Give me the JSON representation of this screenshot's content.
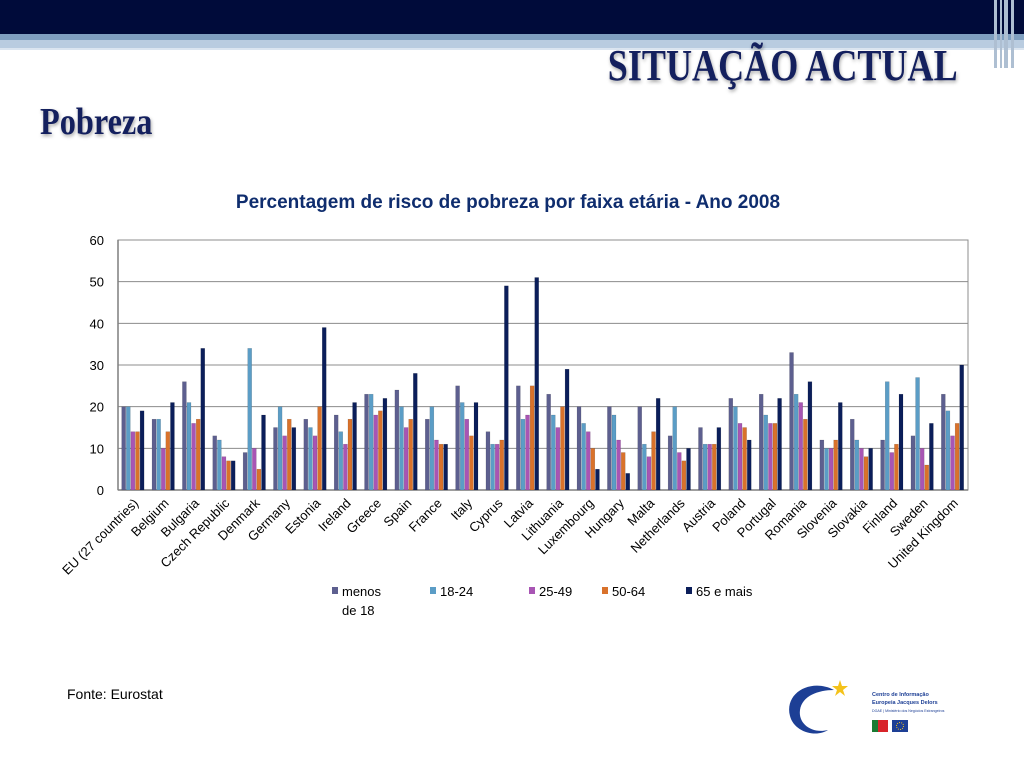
{
  "slide": {
    "heading": "SITUAÇÃO ACTUAL",
    "subheading": "Pobreza",
    "source": "Fonte: Eurostat",
    "logo_lines": [
      "Centro de Informação",
      "Europeia Jacques Delors",
      "DGAE | Ministério dos Negócios Estrangeiros"
    ]
  },
  "chart_data": {
    "type": "bar",
    "title": "Percentagem de risco de pobreza por faixa etária - Ano 2008",
    "xlabel": "",
    "ylabel": "",
    "ylim": [
      0,
      60
    ],
    "yticks": [
      0,
      10,
      20,
      30,
      40,
      50,
      60
    ],
    "grid": true,
    "legend_position": "bottom",
    "categories": [
      "EU (27 countries)",
      "Belgium",
      "Bulgaria",
      "Czech Republic",
      "Denmark",
      "Germany",
      "Estonia",
      "Ireland",
      "Greece",
      "Spain",
      "France",
      "Italy",
      "Cyprus",
      "Latvia",
      "Lithuania",
      "Luxembourg",
      "Hungary",
      "Malta",
      "Netherlands",
      "Austria",
      "Poland",
      "Portugal",
      "Romania",
      "Slovenia",
      "Slovakia",
      "Finland",
      "Sweden",
      "United Kingdom"
    ],
    "series": [
      {
        "name": "menos de 18",
        "color": "#5d5f8f",
        "values": [
          20,
          17,
          26,
          13,
          9,
          15,
          17,
          18,
          23,
          24,
          17,
          25,
          14,
          25,
          23,
          20,
          20,
          20,
          13,
          15,
          22,
          23,
          33,
          12,
          17,
          12,
          13,
          23
        ]
      },
      {
        "name": "18-24",
        "color": "#5b9dc6",
        "values": [
          20,
          17,
          21,
          12,
          34,
          20,
          15,
          14,
          23,
          20,
          20,
          21,
          11,
          17,
          18,
          16,
          18,
          11,
          20,
          11,
          20,
          18,
          23,
          10,
          12,
          26,
          27,
          19
        ]
      },
      {
        "name": "25-49",
        "color": "#a855b4",
        "values": [
          14,
          10,
          16,
          8,
          10,
          13,
          13,
          11,
          18,
          15,
          12,
          17,
          11,
          18,
          15,
          14,
          12,
          8,
          9,
          11,
          16,
          16,
          21,
          10,
          10,
          9,
          10,
          13
        ]
      },
      {
        "name": "50-64",
        "color": "#d9722b",
        "values": [
          14,
          14,
          17,
          7,
          5,
          17,
          20,
          17,
          19,
          17,
          11,
          13,
          12,
          25,
          20,
          10,
          9,
          14,
          7,
          11,
          15,
          16,
          17,
          12,
          8,
          11,
          6,
          16
        ]
      },
      {
        "name": "65 e mais",
        "color": "#0b1e5a",
        "values": [
          19,
          21,
          34,
          7,
          18,
          15,
          39,
          21,
          22,
          28,
          11,
          21,
          49,
          51,
          29,
          5,
          4,
          22,
          10,
          15,
          12,
          22,
          26,
          21,
          10,
          23,
          16,
          30
        ]
      }
    ]
  }
}
